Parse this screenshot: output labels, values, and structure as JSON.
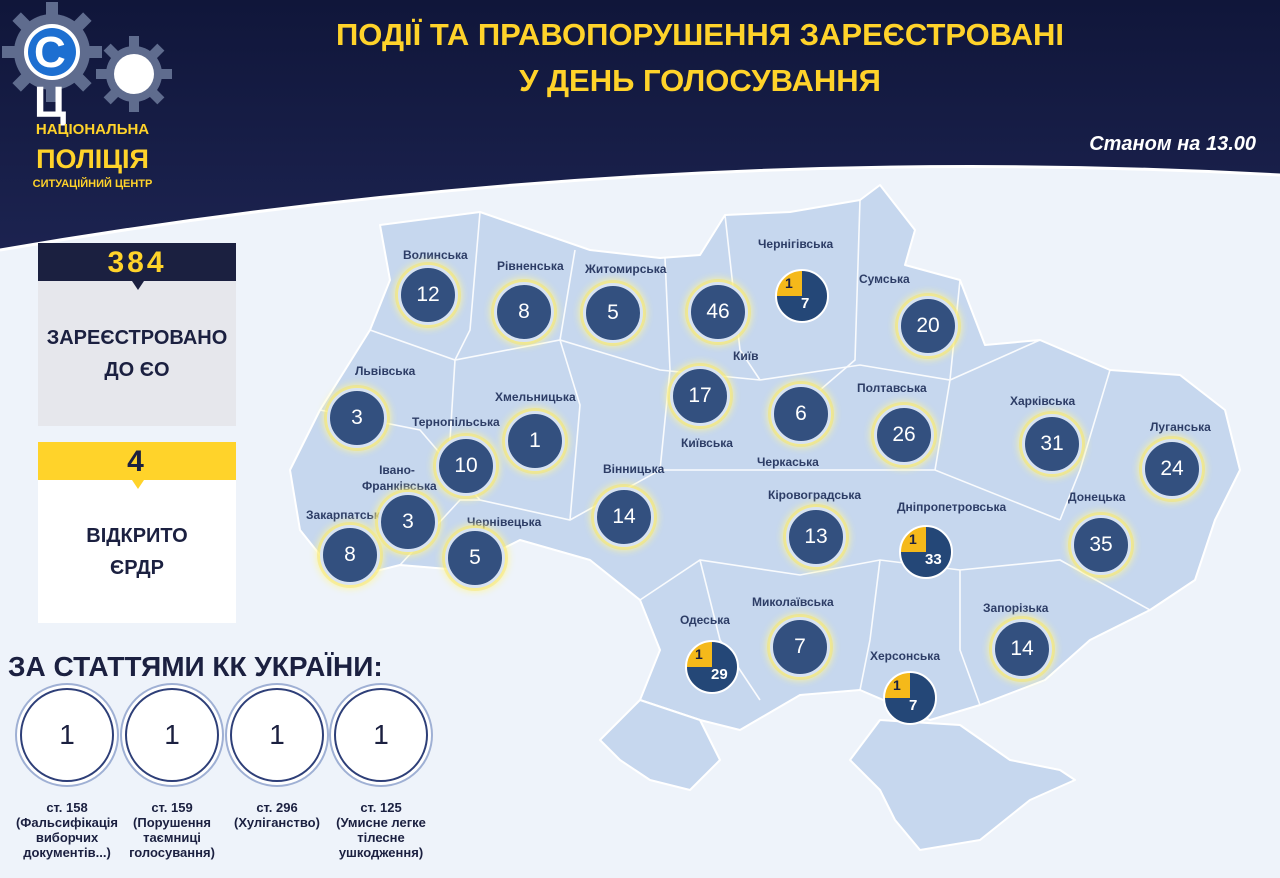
{
  "header": {
    "title_line1": "ПОДІЇ ТА ПРАВОПОРУШЕННЯ ЗАРЕЄСТРОВАНІ",
    "title_line2": "У ДЕНЬ ГОЛОСУВАННЯ",
    "as_of": "Станом на 13.00"
  },
  "logo": {
    "letters": "С Ц",
    "line1": "НАЦІОНАЛЬНА",
    "line2": "ПОЛІЦІЯ",
    "line3": "СИТУАЦІЙНИЙ ЦЕНТР"
  },
  "stats": {
    "registered": {
      "value": "384",
      "label_line1": "ЗАРЕЄСТРОВАНО",
      "label_line2": "ДО ЄО"
    },
    "opened": {
      "value": "4",
      "label_line1": "ВІДКРИТО",
      "label_line2": "ЄРДР"
    }
  },
  "articles": {
    "title": "ЗА СТАТТЯМИ КК УКРАЇНИ:",
    "items": [
      {
        "count": "1",
        "line1": "ст. 158",
        "line2": "(Фальсифікація",
        "line3": "виборчих",
        "line4": "документів...)"
      },
      {
        "count": "1",
        "line1": "ст. 159",
        "line2": "(Порушення",
        "line3": "таємниці",
        "line4": "голосування)"
      },
      {
        "count": "1",
        "line1": "ст. 296",
        "line2": "(Хуліганство)",
        "line3": "",
        "line4": ""
      },
      {
        "count": "1",
        "line1": "ст. 125",
        "line2": "(Умисне легке",
        "line3": "тілесне",
        "line4": "ушкодження)"
      }
    ]
  },
  "regions": [
    {
      "name": "Волинська",
      "value": "12"
    },
    {
      "name": "Рівненська",
      "value": "8"
    },
    {
      "name": "Житомирська",
      "value": "5"
    },
    {
      "name": "Київ",
      "value": "46"
    },
    {
      "name": "Чернігівська",
      "value": "7",
      "erdr": "1"
    },
    {
      "name": "Сумська",
      "value": "20"
    },
    {
      "name": "Львівська",
      "value": "3"
    },
    {
      "name": "Тернопільська",
      "value": "10"
    },
    {
      "name": "Хмельницька",
      "value": "1"
    },
    {
      "name": "Київська",
      "value": "17"
    },
    {
      "name": "Черкаська",
      "value": "6"
    },
    {
      "name": "Полтавська",
      "value": "26"
    },
    {
      "name": "Харківська",
      "value": "31"
    },
    {
      "name": "Луганська",
      "value": "24"
    },
    {
      "name": "Закарпатська",
      "value": "8"
    },
    {
      "name": "Івано-Франківська",
      "value": "3"
    },
    {
      "name": "Чернівецька",
      "value": "5"
    },
    {
      "name": "Вінницька",
      "value": "14"
    },
    {
      "name": "Кіровоградська",
      "value": "13"
    },
    {
      "name": "Дніпропетровська",
      "value": "33",
      "erdr": "1"
    },
    {
      "name": "Донецька",
      "value": "35"
    },
    {
      "name": "Одеська",
      "value": "29",
      "erdr": "1"
    },
    {
      "name": "Миколаївська",
      "value": "7"
    },
    {
      "name": "Херсонська",
      "value": "7",
      "erdr": "1"
    },
    {
      "name": "Запорізька",
      "value": "14"
    }
  ],
  "colors": {
    "header_navy": "#161c3d",
    "accent_yellow": "#ffd32a",
    "badge_blue": "#33507f",
    "map_fill": "#c9d9ef"
  }
}
